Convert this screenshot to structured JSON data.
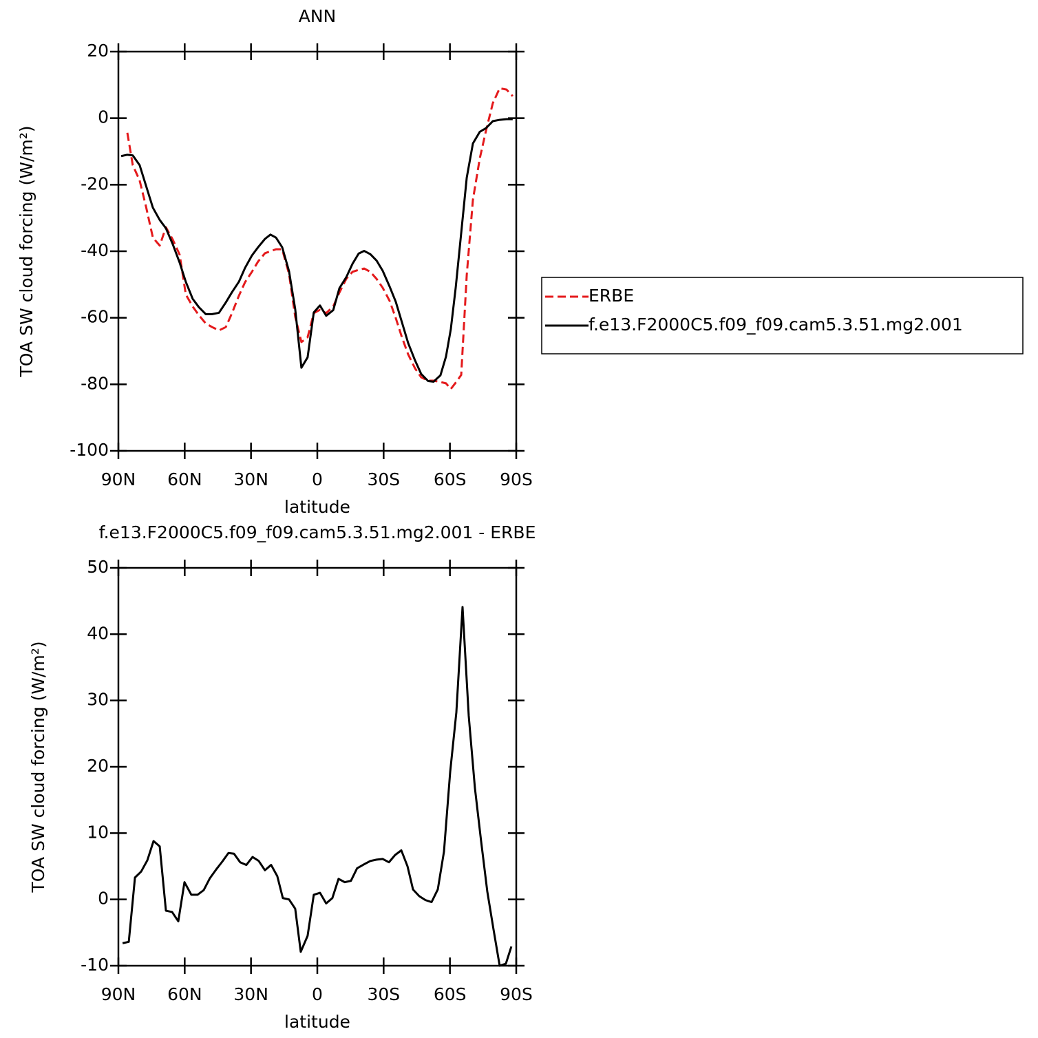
{
  "chart_data": [
    {
      "type": "line",
      "title": "ANN",
      "xlabel": "latitude",
      "ylabel": "TOA SW cloud forcing (W/m²)",
      "xlim": [
        90,
        -90
      ],
      "xticks": [
        {
          "value": 90,
          "label": "90N"
        },
        {
          "value": 60,
          "label": "60N"
        },
        {
          "value": 30,
          "label": "30N"
        },
        0,
        {
          "value": -30,
          "label": "30S"
        },
        {
          "value": -60,
          "label": "60S"
        },
        {
          "value": -90,
          "label": "90S"
        }
      ],
      "ylim": [
        -100,
        20
      ],
      "yticks": [
        -100,
        -80,
        -60,
        -40,
        -20,
        0,
        20
      ],
      "legend": "right",
      "x": [
        88.75,
        85.95,
        83.5,
        80.4,
        77.5,
        74.4,
        71.3,
        68.5,
        65.4,
        62.3,
        59.5,
        56.4,
        53.6,
        50.5,
        47.6,
        44.5,
        41.4,
        38.6,
        35.5,
        32.7,
        29.6,
        26.8,
        23.7,
        21.2,
        18.7,
        15.9,
        12.8,
        10.0,
        7.2,
        4.4,
        1.6,
        -1.2,
        -4.0,
        -7.2,
        -10.0,
        -13.1,
        -15.9,
        -18.7,
        -21.2,
        -24.0,
        -26.8,
        -29.6,
        -32.7,
        -35.5,
        -38.3,
        -41.1,
        -44.2,
        -47.0,
        -50.1,
        -52.6,
        -55.7,
        -58.2,
        -60.4,
        -62.6,
        -65.1,
        -67.6,
        -70.4,
        -73.5,
        -76.3,
        -79.4,
        -82.5,
        -85.6,
        -88.4
      ],
      "series": [
        {
          "name": "ERBE",
          "color": "#e41a1c",
          "linestyle": "dashed",
          "values": [
            null,
            -4.4,
            -14.1,
            -18.7,
            -26.6,
            -35.9,
            -38.3,
            -32.8,
            -36.5,
            -41.0,
            -53.0,
            -56.6,
            -59.2,
            -61.7,
            -62.8,
            -63.8,
            -62.8,
            -58.6,
            -53.4,
            -49.3,
            -46.2,
            -43.1,
            -40.6,
            -40.0,
            -39.4,
            -39.4,
            -46.8,
            -59.7,
            -67.3,
            -65.9,
            -58.6,
            -57.6,
            -58.6,
            -56.6,
            -52.4,
            -48.3,
            -46.2,
            -45.6,
            -45.2,
            -46.2,
            -48.3,
            -51.0,
            -54.9,
            -60.1,
            -65.9,
            -71.0,
            -75.2,
            -77.9,
            -78.9,
            -78.9,
            -79.3,
            -79.7,
            -81.4,
            -79.5,
            -77.2,
            -47.2,
            -24.5,
            -12.1,
            -3.8,
            4.5,
            9.0,
            8.6,
            6.6
          ]
        },
        {
          "name": "f.e13.F2000C5.f09_f09.cam5.3.51.mg2.001",
          "color": "#000000",
          "linestyle": "solid",
          "values": [
            -11.4,
            -11.0,
            -11.2,
            -14.1,
            -20.3,
            -26.9,
            -30.6,
            -33.1,
            -37.9,
            -43.4,
            -49.2,
            -54.3,
            -56.8,
            -58.9,
            -58.9,
            -58.5,
            -55.4,
            -52.3,
            -49.2,
            -45.0,
            -41.3,
            -38.8,
            -36.3,
            -35.0,
            -35.9,
            -38.8,
            -46.0,
            -57.4,
            -75.0,
            -71.9,
            -58.4,
            -56.3,
            -59.4,
            -57.7,
            -51.1,
            -47.8,
            -43.8,
            -40.7,
            -39.9,
            -40.9,
            -42.8,
            -45.9,
            -50.6,
            -55.2,
            -61.4,
            -67.6,
            -72.8,
            -76.9,
            -79.0,
            -79.2,
            -77.3,
            -71.7,
            -63.4,
            -51.0,
            -34.5,
            -17.9,
            -7.6,
            -4.1,
            -3.0,
            -0.9,
            -0.5,
            -0.3,
            -0.3
          ]
        }
      ]
    },
    {
      "type": "line",
      "title": "f.e13.F2000C5.f09_f09.cam5.3.51.mg2.001 - ERBE",
      "xlabel": "latitude",
      "ylabel": "TOA SW cloud forcing (W/m²)",
      "xlim": [
        90,
        -90
      ],
      "xticks": [
        {
          "value": 90,
          "label": "90N"
        },
        {
          "value": 60,
          "label": "60N"
        },
        {
          "value": 30,
          "label": "30N"
        },
        0,
        {
          "value": -30,
          "label": "30S"
        },
        {
          "value": -60,
          "label": "60S"
        },
        {
          "value": -90,
          "label": "90S"
        }
      ],
      "ylim": [
        -10,
        50
      ],
      "yticks": [
        -10,
        0,
        10,
        20,
        30,
        40,
        50
      ],
      "color": "#000000",
      "x": [
        88.1,
        85.3,
        82.5,
        79.7,
        76.9,
        74.1,
        71.3,
        68.5,
        65.7,
        62.9,
        60.1,
        57.0,
        54.2,
        51.4,
        48.6,
        45.8,
        43.0,
        40.2,
        37.7,
        34.9,
        32.1,
        29.3,
        26.5,
        23.7,
        20.9,
        18.1,
        15.6,
        12.8,
        10.0,
        7.5,
        4.4,
        1.6,
        -1.2,
        -4.0,
        -6.8,
        -9.6,
        -12.4,
        -15.2,
        -18.0,
        -21.2,
        -24.0,
        -26.8,
        -29.6,
        -32.4,
        -35.2,
        -38.0,
        -40.8,
        -43.3,
        -46.1,
        -48.9,
        -51.7,
        -54.5,
        -57.3,
        -60.1,
        -62.9,
        -65.7,
        -68.5,
        -71.3,
        -74.1,
        -76.9,
        -79.7,
        -82.5,
        -85.3,
        -87.8
      ],
      "values": [
        -6.6,
        -6.4,
        3.3,
        4.2,
        5.9,
        8.8,
        8.0,
        -1.7,
        -1.9,
        -3.3,
        2.6,
        0.7,
        0.7,
        1.4,
        3.2,
        4.5,
        5.7,
        7.0,
        6.9,
        5.6,
        5.2,
        6.4,
        5.8,
        4.4,
        5.2,
        3.5,
        0.2,
        0.0,
        -1.4,
        -7.9,
        -5.5,
        0.7,
        1.0,
        -0.6,
        0.2,
        3.1,
        2.6,
        2.8,
        4.7,
        5.3,
        5.8,
        6.0,
        6.1,
        5.6,
        6.7,
        7.4,
        5.0,
        1.5,
        0.5,
        -0.1,
        -0.4,
        1.5,
        7.2,
        19.2,
        28.2,
        44.1,
        27.7,
        16.8,
        8.8,
        1.2,
        -4.5,
        -10.0,
        -9.7,
        -7.1
      ]
    }
  ]
}
